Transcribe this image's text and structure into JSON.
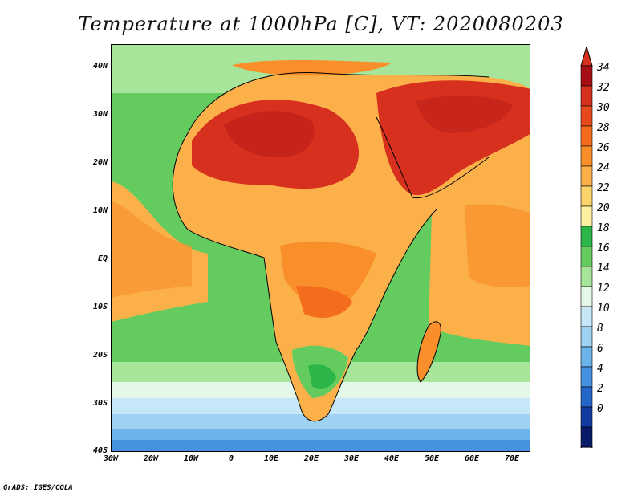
{
  "title": "Temperature at 1000hPa [C], VT: 2020080203",
  "footer": "GrADS: IGES/COLA",
  "map": {
    "lat_labels": [
      "40N",
      "30N",
      "20N",
      "10N",
      "EQ",
      "10S",
      "20S",
      "30S",
      "40S"
    ],
    "lon_labels": [
      "30W",
      "20W",
      "10W",
      "0",
      "10E",
      "20E",
      "30E",
      "40E",
      "50E",
      "60E",
      "70E"
    ]
  },
  "colorbar": {
    "labels": [
      "34",
      "32",
      "30",
      "28",
      "26",
      "24",
      "22",
      "20",
      "18",
      "16",
      "14",
      "12",
      "10",
      "8",
      "6",
      "4",
      "2",
      "0"
    ],
    "colors": [
      "#a50f15",
      "#d7301f",
      "#e8491c",
      "#f46d1e",
      "#f98e2a",
      "#fbb04a",
      "#fdd36b",
      "#fdf0a0",
      "#2cb548",
      "#64cc5f",
      "#a7e59b",
      "#e3f8e8",
      "#c6e7f8",
      "#9fd1f3",
      "#6cb3ec",
      "#4592e0",
      "#2466c8",
      "#123aa0",
      "#081b68"
    ],
    "over_color": "#d7301f",
    "under_color": "#dcdcff"
  }
}
